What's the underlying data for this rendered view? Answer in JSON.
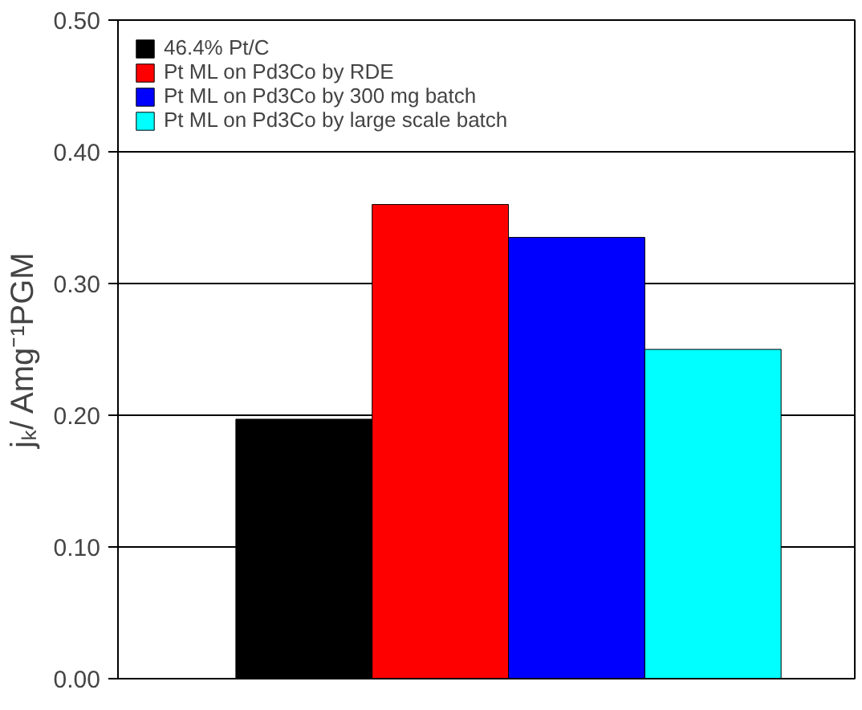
{
  "chart_data": {
    "type": "bar",
    "ylabel": "jₖ/ Amg⁻¹PGM",
    "categories": [
      null
    ],
    "series": [
      {
        "name": "46.4% Pt/C",
        "color": "#000000",
        "values": [
          0.197
        ]
      },
      {
        "name": "Pt ML on Pd3Co by RDE",
        "color": "#ff0000",
        "values": [
          0.36
        ]
      },
      {
        "name": "Pt ML on Pd3Co by 300 mg batch",
        "color": "#0000ff",
        "values": [
          0.335
        ]
      },
      {
        "name": "Pt ML on Pd3Co by large scale batch",
        "color": "#00ffff",
        "values": [
          0.25
        ]
      }
    ],
    "ylim": [
      0,
      0.5
    ],
    "yticks": [
      {
        "value": 0,
        "label": "0.00"
      },
      {
        "value": 0.1,
        "label": "0.10"
      },
      {
        "value": 0.2,
        "label": "0.20"
      },
      {
        "value": 0.3,
        "label": "0.30"
      },
      {
        "value": 0.4,
        "label": "0.40"
      },
      {
        "value": 0.5,
        "label": "0.50"
      }
    ],
    "grid": "y",
    "legend": "top left"
  }
}
